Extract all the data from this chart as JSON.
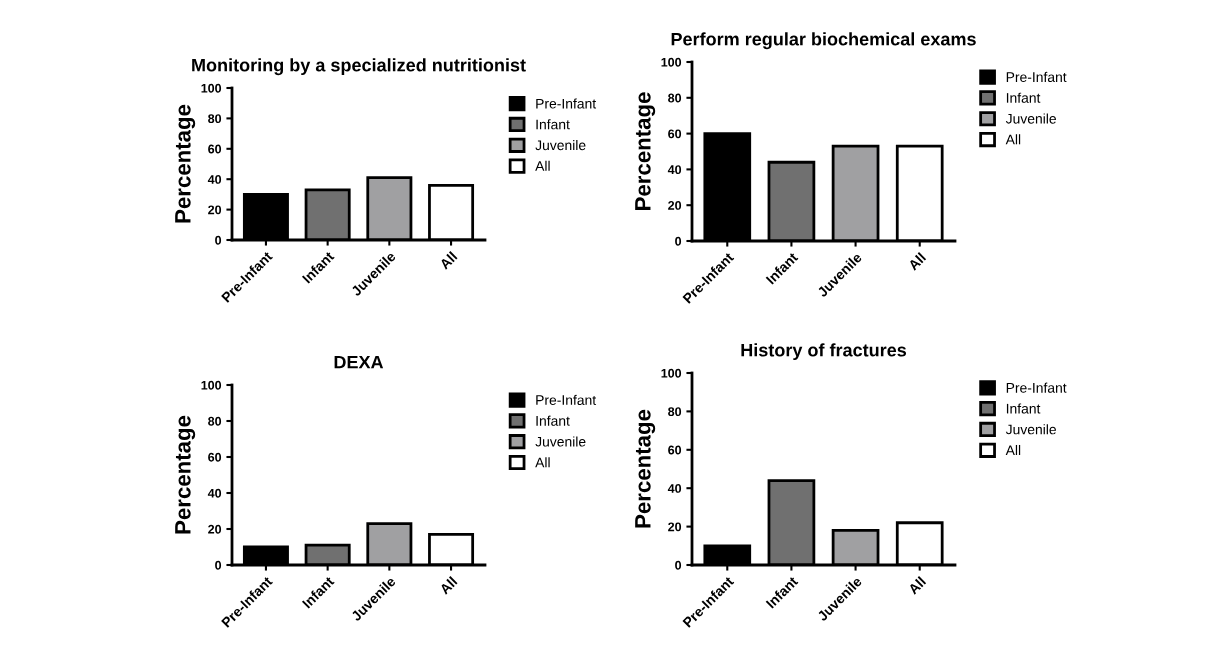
{
  "chart_data": [
    {
      "type": "bar",
      "title": "Monitoring by a specialized nutritionist",
      "ylabel": "Percentage",
      "categories": [
        "Pre-Infant",
        "Infant",
        "Juvenile",
        "All"
      ],
      "series": [
        {
          "name": "Pre-Infant",
          "color": "#000000",
          "values": [
            30,
            null,
            null,
            null
          ]
        },
        {
          "name": "Infant",
          "color": "#707070",
          "values": [
            null,
            33,
            null,
            null
          ]
        },
        {
          "name": "Juvenile",
          "color": "#a0a0a2",
          "values": [
            null,
            null,
            41,
            null
          ]
        },
        {
          "name": "All",
          "color": "#ffffff",
          "values": [
            null,
            null,
            null,
            36
          ]
        }
      ],
      "ylim": [
        0,
        100
      ],
      "yticks": [
        0,
        20,
        40,
        60,
        80,
        100
      ],
      "legend": "right"
    },
    {
      "type": "bar",
      "title": "Perform regular biochemical exams",
      "ylabel": "Percentage",
      "categories": [
        "Pre-Infant",
        "Infant",
        "Juvenile",
        "All"
      ],
      "series": [
        {
          "name": "Pre-Infant",
          "color": "#000000",
          "values": [
            60,
            null,
            null,
            null
          ]
        },
        {
          "name": "Infant",
          "color": "#707070",
          "values": [
            null,
            44,
            null,
            null
          ]
        },
        {
          "name": "Juvenile",
          "color": "#a0a0a2",
          "values": [
            null,
            null,
            53,
            null
          ]
        },
        {
          "name": "All",
          "color": "#ffffff",
          "values": [
            null,
            null,
            null,
            53
          ]
        }
      ],
      "ylim": [
        0,
        100
      ],
      "yticks": [
        0,
        20,
        40,
        60,
        80,
        100
      ],
      "legend": "right"
    },
    {
      "type": "bar",
      "title": "DEXA",
      "ylabel": "Percentage",
      "categories": [
        "Pre-Infant",
        "Infant",
        "Juvenile",
        "All"
      ],
      "series": [
        {
          "name": "Pre-Infant",
          "color": "#000000",
          "values": [
            10,
            null,
            null,
            null
          ]
        },
        {
          "name": "Infant",
          "color": "#707070",
          "values": [
            null,
            11,
            null,
            null
          ]
        },
        {
          "name": "Juvenile",
          "color": "#a0a0a2",
          "values": [
            null,
            null,
            23,
            null
          ]
        },
        {
          "name": "All",
          "color": "#ffffff",
          "values": [
            null,
            null,
            null,
            17
          ]
        }
      ],
      "ylim": [
        0,
        100
      ],
      "yticks": [
        0,
        20,
        40,
        60,
        80,
        100
      ],
      "legend": "right"
    },
    {
      "type": "bar",
      "title": "History of fractures",
      "ylabel": "Percentage",
      "categories": [
        "Pre-Infant",
        "Infant",
        "Juvenile",
        "All"
      ],
      "series": [
        {
          "name": "Pre-Infant",
          "color": "#000000",
          "values": [
            10,
            null,
            null,
            null
          ]
        },
        {
          "name": "Infant",
          "color": "#707070",
          "values": [
            null,
            44,
            null,
            null
          ]
        },
        {
          "name": "Juvenile",
          "color": "#a0a0a2",
          "values": [
            null,
            null,
            18,
            null
          ]
        },
        {
          "name": "All",
          "color": "#ffffff",
          "values": [
            null,
            null,
            null,
            22
          ]
        }
      ],
      "ylim": [
        0,
        100
      ],
      "yticks": [
        0,
        20,
        40,
        60,
        80,
        100
      ],
      "legend": "right"
    }
  ]
}
